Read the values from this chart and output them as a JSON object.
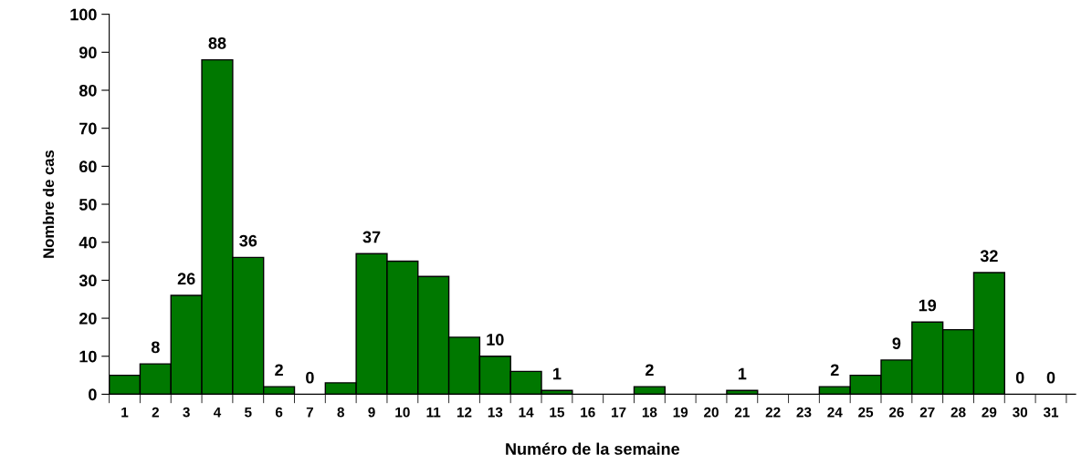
{
  "chart_data": {
    "type": "bar",
    "xlabel": "Numéro de la semaine",
    "ylabel": "Nombre de cas",
    "categories": [
      "1",
      "2",
      "3",
      "4",
      "5",
      "6",
      "7",
      "8",
      "9",
      "10",
      "11",
      "12",
      "13",
      "14",
      "15",
      "16",
      "17",
      "18",
      "19",
      "20",
      "21",
      "22",
      "23",
      "24",
      "25",
      "26",
      "27",
      "28",
      "29",
      "30",
      "31"
    ],
    "values": [
      5,
      8,
      26,
      88,
      36,
      2,
      0,
      3,
      37,
      35,
      31,
      15,
      10,
      6,
      1,
      0,
      0,
      2,
      0,
      0,
      1,
      0,
      0,
      2,
      5,
      9,
      19,
      17,
      32,
      0,
      0
    ],
    "value_labels": [
      null,
      "8",
      "26",
      "88",
      "36",
      "2",
      "0",
      null,
      "37",
      null,
      null,
      null,
      "10",
      null,
      "1",
      null,
      null,
      "2",
      null,
      null,
      "1",
      null,
      null,
      "2",
      null,
      "9",
      "19",
      null,
      "32",
      "0",
      "0"
    ],
    "color": "#007800",
    "ylim": [
      0,
      100
    ],
    "yticks": [
      0,
      10,
      20,
      30,
      40,
      50,
      60,
      70,
      80,
      90,
      100
    ],
    "grid": false,
    "legend": false
  }
}
